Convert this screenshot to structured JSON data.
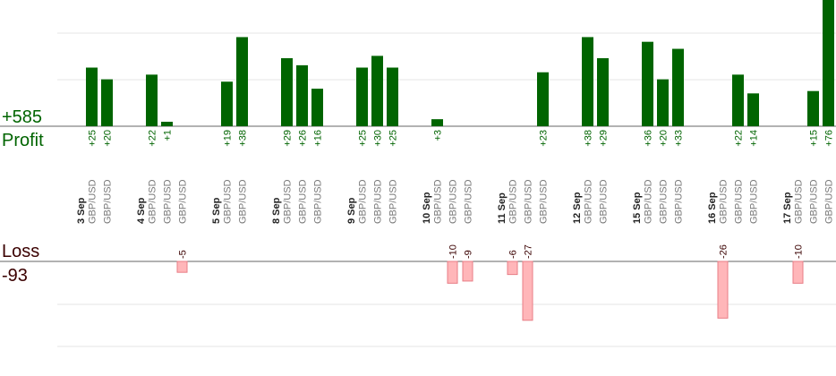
{
  "summary": {
    "profit_total": "+585",
    "profit_label": "Profit",
    "loss_label": "Loss",
    "loss_total": "-93"
  },
  "colors": {
    "profit_bar": "#006400",
    "profit_text": "#006400",
    "loss_bar_fill": "#ffb6b9",
    "loss_bar_stroke": "#e87d86",
    "loss_text": "#3a0000",
    "axis": "#666666",
    "grid": "#e6e6e6"
  },
  "chart_data": {
    "type": "bar",
    "profit_axis_max": 50,
    "loss_axis_min": -50,
    "pair": "GBP/USD",
    "days": [
      {
        "date": "3 Sep",
        "trades": [
          25,
          20
        ]
      },
      {
        "date": "4 Sep",
        "trades": [
          22,
          1,
          -5
        ]
      },
      {
        "date": "5 Sep",
        "trades": [
          19,
          38
        ]
      },
      {
        "date": "8 Sep",
        "trades": [
          29,
          26,
          16
        ]
      },
      {
        "date": "9 Sep",
        "trades": [
          25,
          30,
          25
        ]
      },
      {
        "date": "10 Sep",
        "trades": [
          3,
          -10,
          -9
        ]
      },
      {
        "date": "11 Sep",
        "trades": [
          -6,
          -27,
          23
        ]
      },
      {
        "date": "12 Sep",
        "trades": [
          38,
          29
        ]
      },
      {
        "date": "15 Sep",
        "trades": [
          36,
          20,
          33
        ]
      },
      {
        "date": "16 Sep",
        "trades": [
          -26,
          22,
          14
        ]
      },
      {
        "date": "17 Sep",
        "trades": [
          -10,
          15,
          76
        ]
      }
    ]
  }
}
